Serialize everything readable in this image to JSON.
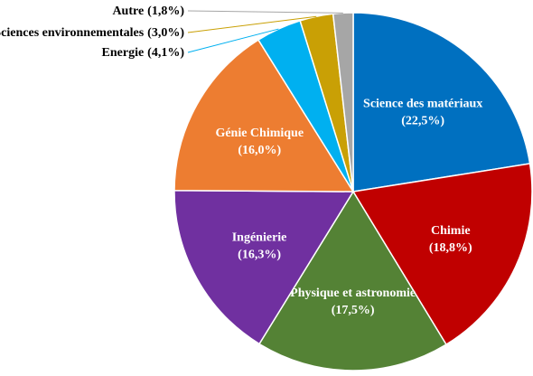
{
  "chart_data": {
    "type": "pie",
    "categories": [
      "Science des matériaux",
      "Chimie",
      "Physique et astronomie",
      "Ingénierie",
      "Génie Chimique",
      "Energie",
      "Sciences environnementales",
      "Autre"
    ],
    "values": [
      22.5,
      18.8,
      17.5,
      16.3,
      16.0,
      4.1,
      3.0,
      1.8
    ],
    "value_labels": [
      "(22,5%)",
      "(18,8%)",
      "(17,5%)",
      "(16,3%)",
      "(16,0%)",
      "(4,1%)",
      "(3,0%)",
      "(1,8%)"
    ],
    "colors": [
      "#0070c0",
      "#c00000",
      "#548235",
      "#7030a0",
      "#ed7d31",
      "#00b0f0",
      "#c9a005",
      "#a6a6a6"
    ]
  }
}
